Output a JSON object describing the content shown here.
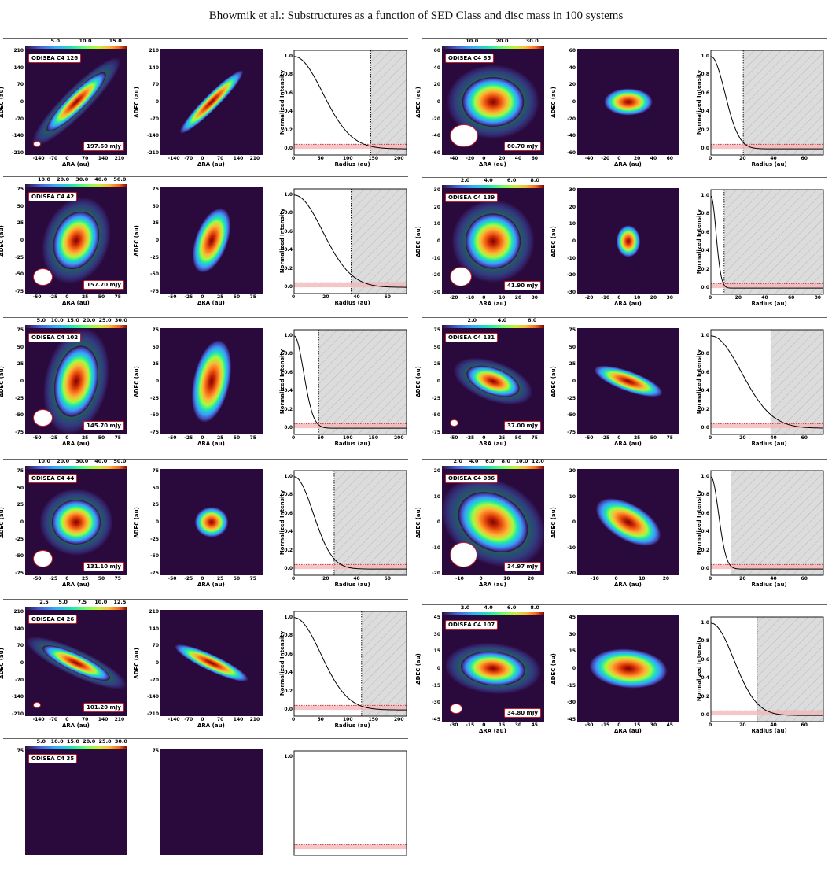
{
  "page_title": "Bhowmik et al.: Substructures as a function of SED Class and disc mass in 100 systems",
  "colors": {
    "background_image": "#2a0a3c",
    "label_border": "#c2212e",
    "shaded_band": "#f4b6b8",
    "hatched_region": "#dcdcdc"
  },
  "axis_labels": {
    "ra": "ΔRA (au)",
    "dec": "ΔDEC (au)",
    "radius": "Radius (au)",
    "intensity": "Normalized Intensity"
  },
  "systems": [
    {
      "name": "ODISEA C4 126",
      "flux": "197.60 mJy",
      "colorbar_ticks": [
        "5.0",
        "10.0",
        "15.0"
      ],
      "img_ticks": [
        "-210",
        "-140",
        "-70",
        "0",
        "70",
        "140",
        "210"
      ],
      "img_xticks": [
        "-140",
        "-70",
        "0",
        "70",
        "140",
        "210"
      ],
      "img_yticks": [
        "210",
        "140",
        "70",
        "0",
        "-70",
        "-140",
        "-210"
      ],
      "model_xticks": [
        "-140",
        "-70",
        "0",
        "70",
        "140",
        "210"
      ],
      "model_yticks": [
        "210",
        "140",
        "70",
        "0",
        "-70",
        "-140",
        "-210"
      ],
      "radial_xticks": [
        "0",
        "50",
        "100",
        "150",
        "200"
      ],
      "radial_xmax": 220,
      "radial_xtick_values": [
        0,
        50,
        100,
        150,
        200
      ],
      "disc_radius": 150,
      "radial_yticks": [
        "0.0",
        "0.2",
        "0.4",
        "0.6",
        "0.8",
        "1.0"
      ],
      "blob": {
        "size": 0.18,
        "elong": 4.6,
        "pa": 45,
        "model_size": 0.17,
        "model_elong": 6
      },
      "profile_width": 0.45,
      "beam": {
        "w": 0.06,
        "h": 0.045
      }
    },
    {
      "name": "ODISEA C4 42",
      "flux": "157.70 mJy",
      "colorbar_ticks": [
        "10.0",
        "20.0",
        "30.0",
        "40.0",
        "50.0"
      ],
      "img_xticks": [
        "-50",
        "-25",
        "0",
        "25",
        "50",
        "75"
      ],
      "img_yticks": [
        "75",
        "50",
        "25",
        "0",
        "-25",
        "-50",
        "-75"
      ],
      "model_xticks": [
        "-50",
        "-25",
        "0",
        "25",
        "50",
        "75"
      ],
      "model_yticks": [
        "75",
        "50",
        "25",
        "0",
        "-25",
        "-50",
        "-75"
      ],
      "radial_xticks": [
        "0",
        "20",
        "40",
        "60"
      ],
      "radial_xmax": 73,
      "radial_xtick_values": [
        0,
        20,
        40,
        60
      ],
      "disc_radius": 37,
      "radial_yticks": [
        "0.0",
        "0.2",
        "0.4",
        "0.6",
        "0.8",
        "1.0"
      ],
      "blob": {
        "size": 0.24,
        "elong": 1.35,
        "pa": 70,
        "model_size": 0.22,
        "model_elong": 2.1
      },
      "profile_width": 0.45,
      "beam": {
        "w": 0.18,
        "h": 0.15
      }
    },
    {
      "name": "ODISEA C4 102",
      "flux": "145.70 mJy",
      "colorbar_ticks": [
        "5.0",
        "10.0",
        "15.0",
        "20.0",
        "25.0",
        "30.0"
      ],
      "img_xticks": [
        "-50",
        "-25",
        "0",
        "25",
        "50",
        "75"
      ],
      "img_yticks": [
        "75",
        "50",
        "25",
        "0",
        "-25",
        "-50",
        "-75"
      ],
      "model_xticks": [
        "-50",
        "-25",
        "0",
        "25",
        "50",
        "75"
      ],
      "model_yticks": [
        "75",
        "50",
        "25",
        "0",
        "-25",
        "-50",
        "-75"
      ],
      "radial_xticks": [
        "0",
        "50",
        "100",
        "150",
        "200"
      ],
      "radial_xmax": 220,
      "radial_xtick_values": [
        0,
        50,
        100,
        150,
        200
      ],
      "disc_radius": 48,
      "radial_yticks": [
        "0.0",
        "0.2",
        "0.4",
        "0.6",
        "0.8",
        "1.0"
      ],
      "blob": {
        "size": 0.26,
        "elong": 1.7,
        "pa": 78,
        "model_size": 0.26,
        "model_elong": 2.3
      },
      "profile_width": 0.15,
      "beam": {
        "w": 0.18,
        "h": 0.15
      }
    },
    {
      "name": "ODISEA C4 44",
      "flux": "131.10 mJy",
      "colorbar_ticks": [
        "10.0",
        "20.0",
        "30.0",
        "40.0",
        "50.0"
      ],
      "img_xticks": [
        "-50",
        "-25",
        "0",
        "25",
        "50",
        "75"
      ],
      "img_yticks": [
        "75",
        "50",
        "25",
        "0",
        "-25",
        "-50",
        "-75"
      ],
      "model_xticks": [
        "-50",
        "-25",
        "0",
        "25",
        "50",
        "75"
      ],
      "model_yticks": [
        "75",
        "50",
        "25",
        "0",
        "-25",
        "-50",
        "-75"
      ],
      "radial_xticks": [
        "0",
        "20",
        "40",
        "60"
      ],
      "radial_xmax": 73,
      "radial_xtick_values": [
        0,
        20,
        40,
        60
      ],
      "disc_radius": 26,
      "radial_yticks": [
        "0.0",
        "0.2",
        "0.4",
        "0.6",
        "0.8",
        "1.0"
      ],
      "blob": {
        "size": 0.22,
        "elong": 1.1,
        "pa": 0,
        "model_size": 0.15,
        "model_elong": 1.1
      },
      "profile_width": 0.3,
      "beam": {
        "w": 0.18,
        "h": 0.15
      }
    },
    {
      "name": "ODISEA C4 26",
      "flux": "101.20 mJy",
      "colorbar_ticks": [
        "2.5",
        "5.0",
        "7.5",
        "10.0",
        "12.5"
      ],
      "img_xticks": [
        "-140",
        "-70",
        "0",
        "70",
        "140",
        "210"
      ],
      "img_yticks": [
        "210",
        "140",
        "70",
        "0",
        "-70",
        "-140",
        "-210"
      ],
      "model_xticks": [
        "-140",
        "-70",
        "0",
        "70",
        "140",
        "210"
      ],
      "model_yticks": [
        "210",
        "140",
        "70",
        "0",
        "-70",
        "-140",
        "-210"
      ],
      "radial_xticks": [
        "0",
        "50",
        "100",
        "150",
        "200"
      ],
      "radial_xmax": 220,
      "radial_xtick_values": [
        0,
        50,
        100,
        150,
        200
      ],
      "disc_radius": 132,
      "radial_yticks": [
        "0.0",
        "0.2",
        "0.4",
        "0.6",
        "0.8",
        "1.0"
      ],
      "blob": {
        "size": 0.17,
        "elong": 4.2,
        "pa": -25,
        "model_size": 0.17,
        "model_elong": 5
      },
      "profile_width": 0.42,
      "beam": {
        "w": 0.06,
        "h": 0.045
      }
    },
    {
      "name": "ODISEA C4 35",
      "flux": "",
      "colorbar_ticks": [
        "5.0",
        "10.0",
        "15.0",
        "20.0",
        "25.0",
        "30.0"
      ],
      "img_yticks": [
        "75"
      ],
      "model_yticks": [
        "75"
      ],
      "radial_yticks": [
        "1.0"
      ]
    },
    {
      "name": "ODISEA C4 85",
      "flux": "80.70 mJy",
      "colorbar_ticks": [
        "10.0",
        "20.0",
        "30.0"
      ],
      "img_xticks": [
        "-40",
        "-20",
        "0",
        "20",
        "40",
        "60"
      ],
      "img_yticks": [
        "60",
        "40",
        "20",
        "0",
        "-20",
        "-40",
        "-60"
      ],
      "model_xticks": [
        "-40",
        "-20",
        "0",
        "20",
        "40",
        "60"
      ],
      "model_yticks": [
        "60",
        "40",
        "20",
        "0",
        "-20",
        "-40",
        "-60"
      ],
      "radial_xticks": [
        "0",
        "20",
        "40",
        "60"
      ],
      "radial_xmax": 73,
      "radial_xtick_values": [
        0,
        20,
        40,
        60
      ],
      "disc_radius": 21,
      "radial_yticks": [
        "0.0",
        "0.2",
        "0.4",
        "0.6",
        "0.8",
        "1.0"
      ],
      "blob": {
        "size": 0.26,
        "elong": 1.25,
        "pa": 0,
        "model_size": 0.17,
        "model_elong": 1.8
      },
      "profile_width": 0.22,
      "beam": {
        "w": 0.26,
        "h": 0.2
      }
    },
    {
      "name": "ODISEA C4 139",
      "flux": "41.90 mJy",
      "colorbar_ticks": [
        "2.0",
        "4.0",
        "6.0",
        "8.0"
      ],
      "img_xticks": [
        "-20",
        "-10",
        "0",
        "10",
        "20",
        "30"
      ],
      "img_yticks": [
        "30",
        "20",
        "10",
        "0",
        "-10",
        "-20",
        "-30"
      ],
      "model_xticks": [
        "-20",
        "-10",
        "0",
        "10",
        "20",
        "30"
      ],
      "model_yticks": [
        "30",
        "20",
        "10",
        "0",
        "-10",
        "-20",
        "-30"
      ],
      "radial_xticks": [
        "0",
        "20",
        "40",
        "60",
        "80"
      ],
      "radial_xmax": 85,
      "radial_xtick_values": [
        0,
        20,
        40,
        60,
        80
      ],
      "disc_radius": 10,
      "radial_yticks": [
        "0.0",
        "0.2",
        "0.4",
        "0.6",
        "0.8",
        "1.0"
      ],
      "blob": {
        "size": 0.26,
        "elong": 1.0,
        "pa": 0,
        "model_size": 0.13,
        "model_elong": 0.75,
        "pixel": true
      },
      "profile_width": 0.08,
      "beam": {
        "w": 0.2,
        "h": 0.17
      }
    },
    {
      "name": "ODISEA C4 131",
      "flux": "37.00 mJy",
      "colorbar_ticks": [
        "2.0",
        "4.0",
        "6.0"
      ],
      "img_xticks": [
        "-50",
        "-25",
        "0",
        "25",
        "50",
        "75"
      ],
      "img_yticks": [
        "75",
        "50",
        "25",
        "0",
        "-25",
        "-50",
        "-75"
      ],
      "model_xticks": [
        "-50",
        "-25",
        "0",
        "25",
        "50",
        "75"
      ],
      "model_yticks": [
        "75",
        "50",
        "25",
        "0",
        "-25",
        "-50",
        "-75"
      ],
      "radial_xticks": [
        "0",
        "20",
        "40",
        "60"
      ],
      "radial_xmax": 73,
      "radial_xtick_values": [
        0,
        20,
        40,
        60
      ],
      "disc_radius": 39,
      "radial_yticks": [
        "0.0",
        "0.2",
        "0.4",
        "0.6",
        "0.8",
        "1.0"
      ],
      "blob": {
        "size": 0.18,
        "elong": 2.1,
        "pa": -20,
        "model_size": 0.18,
        "model_elong": 3.6
      },
      "profile_width": 0.48,
      "beam": {
        "w": 0.07,
        "h": 0.055
      }
    },
    {
      "name": "ODISEA C4 086",
      "flux": "34.97 mJy",
      "colorbar_ticks": [
        "2.0",
        "4.0",
        "6.0",
        "8.0",
        "10.0",
        "12.0"
      ],
      "img_xticks": [
        "-10",
        "0",
        "10",
        "20"
      ],
      "img_yticks": [
        "20",
        "10",
        "0",
        "-10",
        "-20"
      ],
      "model_xticks": [
        "-10",
        "0",
        "10",
        "20"
      ],
      "model_yticks": [
        "20",
        "10",
        "0",
        "-10",
        "-20"
      ],
      "radial_xticks": [
        "0",
        "20",
        "40",
        "60"
      ],
      "radial_xmax": 73,
      "radial_xtick_values": [
        0,
        20,
        40,
        60
      ],
      "disc_radius": 13,
      "radial_yticks": [
        "0.0",
        "0.2",
        "0.4",
        "0.6",
        "0.8",
        "1.0"
      ],
      "blob": {
        "size": 0.3,
        "elong": 1.35,
        "pa": -30,
        "model_size": 0.24,
        "model_elong": 2.0,
        "pixel": true
      },
      "profile_width": 0.12,
      "beam": {
        "w": 0.25,
        "h": 0.22
      }
    },
    {
      "name": "ODISEA C4 107",
      "flux": "34.80 mJy",
      "colorbar_ticks": [
        "2.0",
        "4.0",
        "6.0",
        "8.0"
      ],
      "img_xticks": [
        "-30",
        "-15",
        "0",
        "15",
        "30",
        "45"
      ],
      "img_yticks": [
        "45",
        "30",
        "15",
        "0",
        "-15",
        "-30",
        "-45"
      ],
      "model_xticks": [
        "-30",
        "-15",
        "0",
        "15",
        "30",
        "45"
      ],
      "model_yticks": [
        "45",
        "30",
        "15",
        "0",
        "-15",
        "-30",
        "-45"
      ],
      "radial_xticks": [
        "0",
        "20",
        "40",
        "60"
      ],
      "radial_xmax": 73,
      "radial_xtick_values": [
        0,
        20,
        40,
        60
      ],
      "disc_radius": 30,
      "radial_yticks": [
        "0.0",
        "0.2",
        "0.4",
        "0.6",
        "0.8",
        "1.0"
      ],
      "blob": {
        "size": 0.22,
        "elong": 1.9,
        "pa": -5,
        "model_size": 0.26,
        "model_elong": 2.0
      },
      "profile_width": 0.36,
      "beam": {
        "w": 0.11,
        "h": 0.085
      }
    }
  ]
}
